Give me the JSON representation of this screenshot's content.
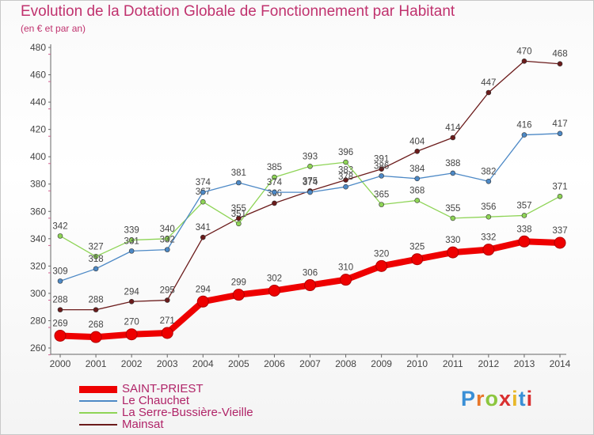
{
  "title": "Evolution de la Dotation Globale de Fonctionnement par Habitant",
  "subtitle": "(en € et par an)",
  "brand": "Proxiti",
  "chart_data": {
    "type": "line",
    "title": "Evolution de la Dotation Globale de Fonctionnement par Habitant",
    "subtitle": "(en € et par an)",
    "x": [
      "2000",
      "2001",
      "2002",
      "2003",
      "2004",
      "2005",
      "2006",
      "2007",
      "2008",
      "2009",
      "2010",
      "2011",
      "2012",
      "2013",
      "2014"
    ],
    "ylim": [
      260,
      480
    ],
    "yticks": [
      260,
      280,
      300,
      320,
      340,
      360,
      380,
      400,
      420,
      440,
      460,
      480
    ],
    "grid": false,
    "legend_position": "bottom-left",
    "series": [
      {
        "name": "SAINT-PRIEST",
        "color": "#ee0000",
        "values": [
          269,
          268,
          270,
          271,
          294,
          299,
          302,
          306,
          310,
          320,
          325,
          330,
          332,
          338,
          337
        ]
      },
      {
        "name": "Le Chauchet",
        "color": "#4d89c6",
        "values": [
          309,
          318,
          331,
          332,
          374,
          381,
          374,
          374,
          378,
          386,
          384,
          388,
          382,
          416,
          417
        ]
      },
      {
        "name": "La Serre-Bussière-Vieille",
        "color": "#8ed456",
        "values": [
          342,
          327,
          339,
          340,
          367,
          351,
          385,
          393,
          396,
          365,
          368,
          355,
          356,
          357,
          371
        ]
      },
      {
        "name": "Mainsat",
        "color": "#6b1b1b",
        "values": [
          288,
          288,
          294,
          295,
          341,
          355,
          366,
          375,
          383,
          391,
          404,
          414,
          447,
          470,
          468
        ]
      }
    ]
  }
}
